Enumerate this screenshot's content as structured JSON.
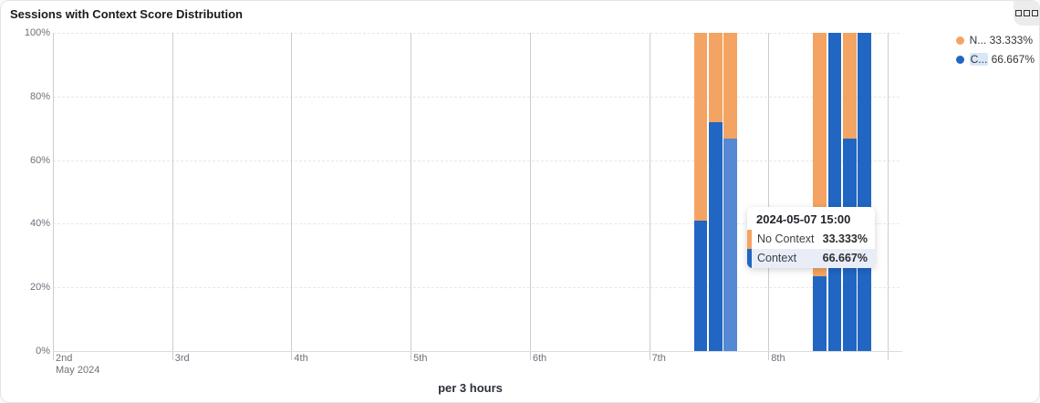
{
  "card": {
    "title": "Sessions with Context Score Distribution"
  },
  "colors": {
    "no_context": "#f4a462",
    "context": "#2166c2",
    "context_highlight": "#5589d4",
    "tooltip_row_highlight_bg": "#e8edf8",
    "legend_label_highlight_bg": "#d8e6f7"
  },
  "legend": {
    "items": [
      {
        "label": "N...",
        "value": "33.333%",
        "series": "No Context",
        "color": "#f4a462",
        "highlighted": false
      },
      {
        "label": "C...",
        "value": "66.667%",
        "series": "Context",
        "color": "#2166c2",
        "highlighted": true
      }
    ]
  },
  "tooltip": {
    "title": "2024-05-07 15:00",
    "rows": [
      {
        "label": "No Context",
        "value": "33.333%",
        "color": "#f4a462",
        "highlighted": false
      },
      {
        "label": "Context",
        "value": "66.667%",
        "color": "#2166c2",
        "highlighted": true
      }
    ]
  },
  "chart_data": {
    "type": "bar",
    "stacked": true,
    "title": "Sessions with Context Score Distribution",
    "xlabel": "per 3 hours",
    "ylabel": "",
    "y_axis": {
      "min": 0,
      "max": 100,
      "tick_labels": [
        "0%",
        "20%",
        "40%",
        "60%",
        "80%",
        "100%"
      ],
      "unit": "%"
    },
    "x_axis": {
      "month_label": "May 2024",
      "day_ticks": [
        "2nd",
        "3rd",
        "4th",
        "5th",
        "6th",
        "7th",
        "8th"
      ],
      "days_shown": 7,
      "slots_per_day": 8,
      "interval": "3 hours"
    },
    "grid": {
      "horizontal_dashed": true,
      "vertical_solid": true
    },
    "legend_position": "top-right",
    "series": [
      {
        "name": "No Context",
        "color": "#f4a462"
      },
      {
        "name": "Context",
        "color": "#2166c2"
      }
    ],
    "bars": [
      {
        "date": "2024-05-07",
        "time": "09:00",
        "context": 41,
        "no_context": 59,
        "highlighted": false
      },
      {
        "date": "2024-05-07",
        "time": "12:00",
        "context": 72,
        "no_context": 28,
        "highlighted": false
      },
      {
        "date": "2024-05-07",
        "time": "15:00",
        "context": 66.667,
        "no_context": 33.333,
        "highlighted": true
      },
      {
        "date": "2024-05-08",
        "time": "09:00",
        "context": 23.4,
        "no_context": 76.6,
        "highlighted": false
      },
      {
        "date": "2024-05-08",
        "time": "12:00",
        "context": 100,
        "no_context": 0,
        "highlighted": false
      },
      {
        "date": "2024-05-08",
        "time": "15:00",
        "context": 66.667,
        "no_context": 33.333,
        "highlighted": false
      },
      {
        "date": "2024-05-08",
        "time": "18:00",
        "context": 100,
        "no_context": 0,
        "highlighted": false
      }
    ]
  }
}
